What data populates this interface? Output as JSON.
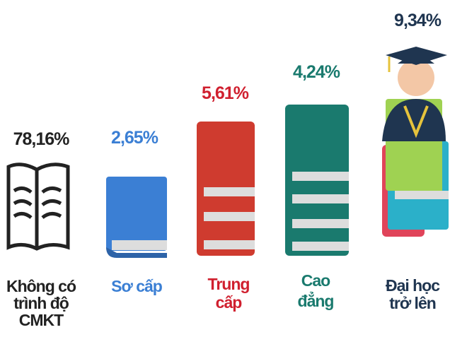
{
  "items": [
    {
      "value": "78,16%",
      "label": [
        "Không có",
        "trình độ",
        "CMKT"
      ]
    },
    {
      "value": "2,65%",
      "label": [
        "Sơ cấp"
      ]
    },
    {
      "value": "5,61%",
      "label": [
        "Trung",
        "cấp"
      ]
    },
    {
      "value": "4,24%",
      "label": [
        "Cao",
        "đẳng"
      ]
    },
    {
      "value": "9,34%",
      "label": [
        "Đại học",
        "trở lên"
      ]
    }
  ]
}
